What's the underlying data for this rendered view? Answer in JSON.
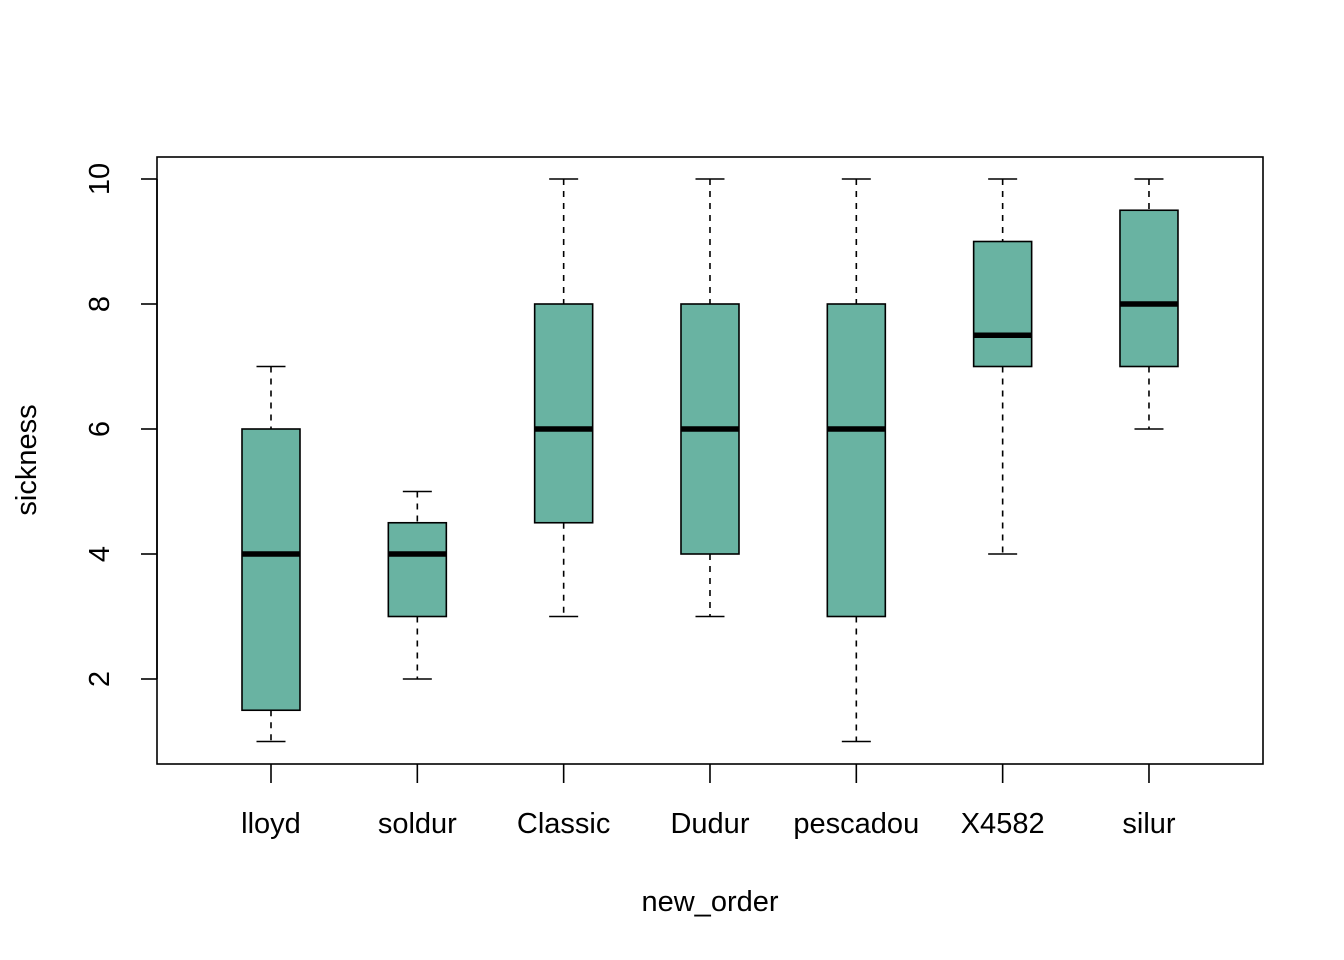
{
  "chart_data": {
    "type": "boxplot",
    "xlabel": "new_order",
    "ylabel": "sickness",
    "ylim": [
      0.75,
      10.35
    ],
    "yticks": [
      2,
      4,
      6,
      8,
      10
    ],
    "categories": [
      "lloyd",
      "soldur",
      "Classic",
      "Dudur",
      "pescadou",
      "X4582",
      "silur"
    ],
    "boxes": [
      {
        "category": "lloyd",
        "min": 1,
        "q1": 1.5,
        "median": 4,
        "q3": 6,
        "max": 7
      },
      {
        "category": "soldur",
        "min": 2,
        "q1": 3,
        "median": 4,
        "q3": 4.5,
        "max": 5
      },
      {
        "category": "Classic",
        "min": 3,
        "q1": 4.5,
        "median": 6,
        "q3": 8,
        "max": 10
      },
      {
        "category": "Dudur",
        "min": 3,
        "q1": 4,
        "median": 6,
        "q3": 8,
        "max": 10
      },
      {
        "category": "pescadou",
        "min": 1,
        "q1": 3,
        "median": 6,
        "q3": 8,
        "max": 10
      },
      {
        "category": "X4582",
        "min": 4,
        "q1": 7,
        "median": 7.5,
        "q3": 9,
        "max": 10
      },
      {
        "category": "silur",
        "min": 6,
        "q1": 7,
        "median": 8,
        "q3": 9.5,
        "max": 10
      }
    ],
    "box_color": "#69B3A2",
    "grid": false,
    "legend": "none"
  }
}
